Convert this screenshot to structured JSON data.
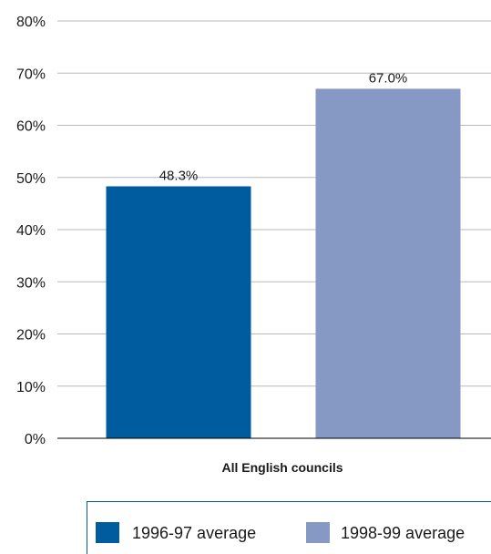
{
  "chart_data": {
    "type": "bar",
    "categories": [
      "All English councils"
    ],
    "series": [
      {
        "name": "1996-97 average",
        "values": [
          48.3
        ],
        "labels": [
          "48.3%"
        ]
      },
      {
        "name": "1998-99 average",
        "values": [
          67.0
        ],
        "labels": [
          "67.0%"
        ]
      }
    ],
    "ylim": [
      0,
      80
    ],
    "yticks": [
      0,
      10,
      20,
      30,
      40,
      50,
      60,
      70,
      80
    ],
    "ytick_labels": [
      "0%",
      "10%",
      "20%",
      "30%",
      "40%",
      "50%",
      "60%",
      "70%",
      "80%"
    ],
    "grid": true,
    "legend_position": "bottom",
    "colors": [
      "#005c9e",
      "#8599c4"
    ],
    "gridline_color": "#b8b8b8",
    "axis_color": "#000000"
  }
}
